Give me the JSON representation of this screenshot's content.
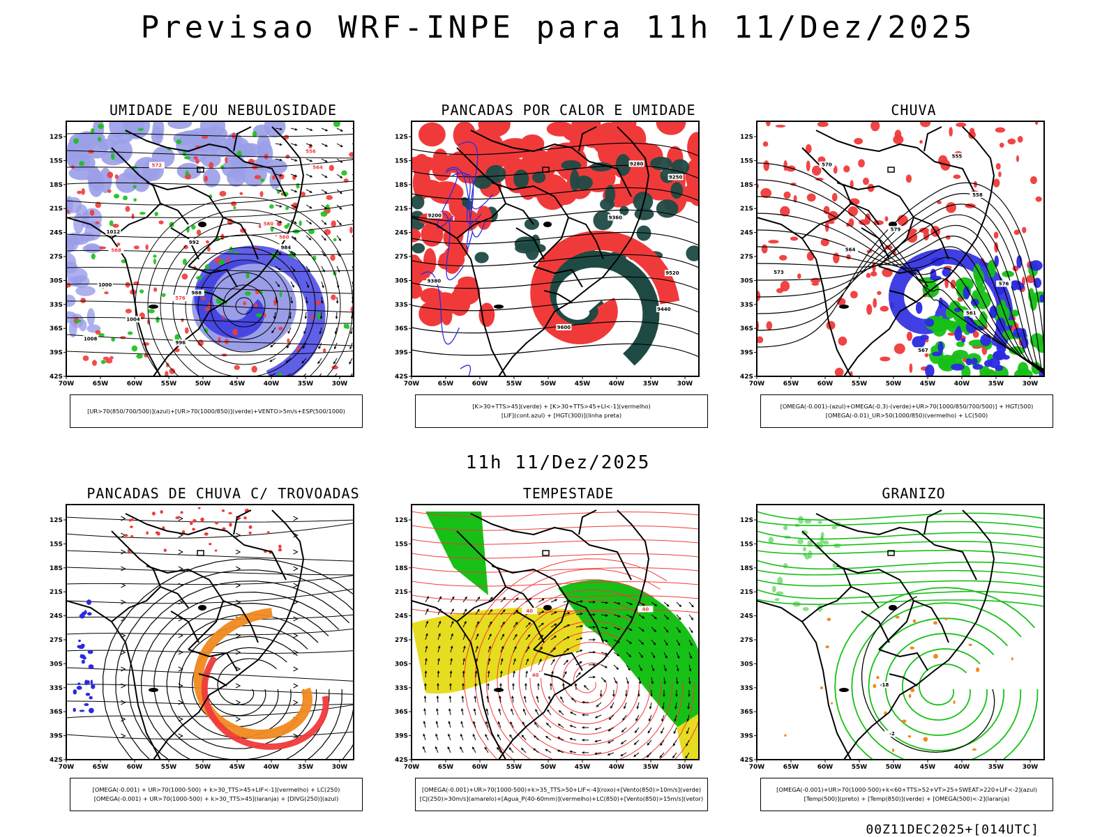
{
  "header": {
    "title": "Previsao WRF-INPE  para 11h 11/Dez/2025",
    "mid_time": "11h 11/Dez/2025",
    "footer": "00Z11DEC2025+[014UTC]"
  },
  "axes": {
    "lat_labels": [
      "12S",
      "15S",
      "18S",
      "21S",
      "24S",
      "27S",
      "30S",
      "33S",
      "36S",
      "39S",
      "42S"
    ],
    "lon_labels": [
      "70W",
      "65W",
      "60W",
      "55W",
      "50W",
      "45W",
      "40W",
      "35W",
      "30W"
    ]
  },
  "panels": [
    {
      "id": "umidade",
      "title": "UMIDADE E/OU NEBULOSIDADE",
      "legend": [
        "[UR>70(850/700/500)](azul)+[UR>70(1000/850)](verde)+VENTO>5m/s+ESP(500/1000)"
      ],
      "labels": [
        "1012",
        "1008",
        "1004",
        "1000",
        "996",
        "992",
        "988",
        "984",
        "580",
        "576",
        "572",
        "568",
        "564",
        "560",
        "556"
      ]
    },
    {
      "id": "pancadas-calor",
      "title": "PANCADAS POR CALOR E UMIDADE",
      "legend": [
        "[K>30+TTS>45](verde) + [K>30+TTS>45+LI<-1](vermelho)",
        "[LIF](cont.azul) + [HGT(300)](linha preta)"
      ],
      "labels": [
        "9600",
        "9520",
        "9440",
        "9360",
        "9280",
        "9200",
        "9250",
        "9380"
      ]
    },
    {
      "id": "chuva",
      "title": "CHUVA",
      "legend": [
        "[OMEGA(-0.001)-(azul)+OMEGA(-0.3)-(verde)+UR>70(1000/850/700/500)] + HGT(500)",
        "[OMEGA(-0.01)_UR>50(1000/850)(vermelho) + LC(500)"
      ],
      "labels": [
        "579",
        "576",
        "573",
        "570",
        "567",
        "564",
        "561",
        "558",
        "555"
      ]
    },
    {
      "id": "trovoadas",
      "title": "PANCADAS DE CHUVA C/ TROVOADAS",
      "legend": [
        "[OMEGA(-0.001) + UR>70(1000-500) + k>30_TTS>45+LIF<-1](vermelho) + LC(250)",
        "[OMEGA(-0.001) + UR>70(1000-500) + k>30_TTS>45](laranja) + [DIVG(250)](azul)"
      ],
      "labels": []
    },
    {
      "id": "tempestade",
      "title": "TEMPESTADE",
      "legend": [
        "[OMEGA(-0.001)+UR>70(1000-500)+k>35_TTS>50+LIF<-4](roxo)+[Vento(850)>10m/s](verde)",
        "[CJ(250)>30m/s](amarelo)+[Agua_P(40-60mm)](vermelho)+LC(850)+[Vento(850)>15m/s](vetor)"
      ],
      "labels": [
        "40",
        "40",
        "40"
      ]
    },
    {
      "id": "granizo",
      "title": "GRANIZO",
      "legend": [
        "[OMEGA(-0.001)+UR>70(1000-500)+k<60+TTS>52+VT>25+SWEAT>220+LIF<-2](azul)",
        "[Temp(500)](preto) + [Temp(850)](verde) + [OMEGA(500)<-2](laranja)"
      ],
      "labels": [
        "-18",
        "-2"
      ]
    }
  ],
  "colors": {
    "blue_fill": "#9a9ee8",
    "blue_deep": "#2a2ae0",
    "green": "#16c016",
    "red": "#f03a3a",
    "dark_teal": "#1f4a44",
    "yellow": "#e6dc20",
    "orange": "#f08a20"
  }
}
